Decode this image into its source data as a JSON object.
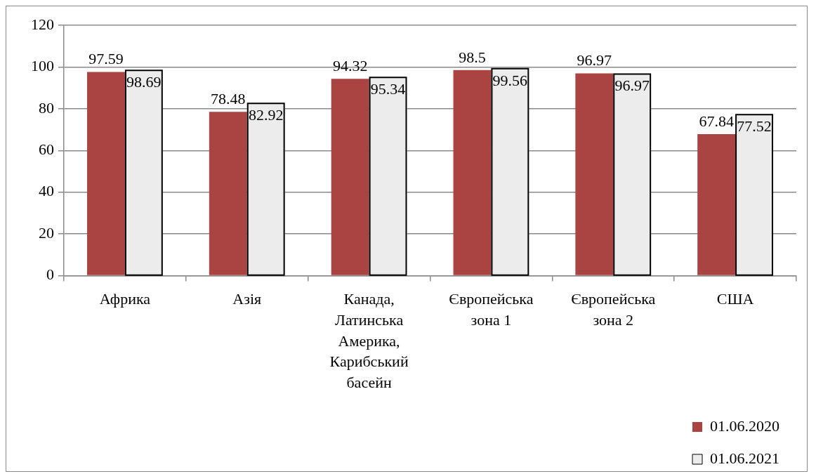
{
  "chart_data": {
    "type": "bar",
    "categories": [
      "Африка",
      "Азія",
      "Канада, Латинська Америка, Карибський басейн",
      "Європейська зона 1",
      "Європейська зона 2",
      "США"
    ],
    "series": [
      {
        "name": "01.06.2020",
        "color": "#a94442",
        "values": [
          97.59,
          78.48,
          94.32,
          98.5,
          96.97,
          67.84
        ]
      },
      {
        "name": "01.06.2021",
        "color": "#ececec",
        "values": [
          98.69,
          82.92,
          95.34,
          99.56,
          96.97,
          77.52
        ]
      }
    ],
    "ylim": [
      0,
      120
    ],
    "yticks": [
      0,
      20,
      40,
      60,
      80,
      100,
      120
    ],
    "grid": "y",
    "legend": "bottom right",
    "data_labels": true
  }
}
